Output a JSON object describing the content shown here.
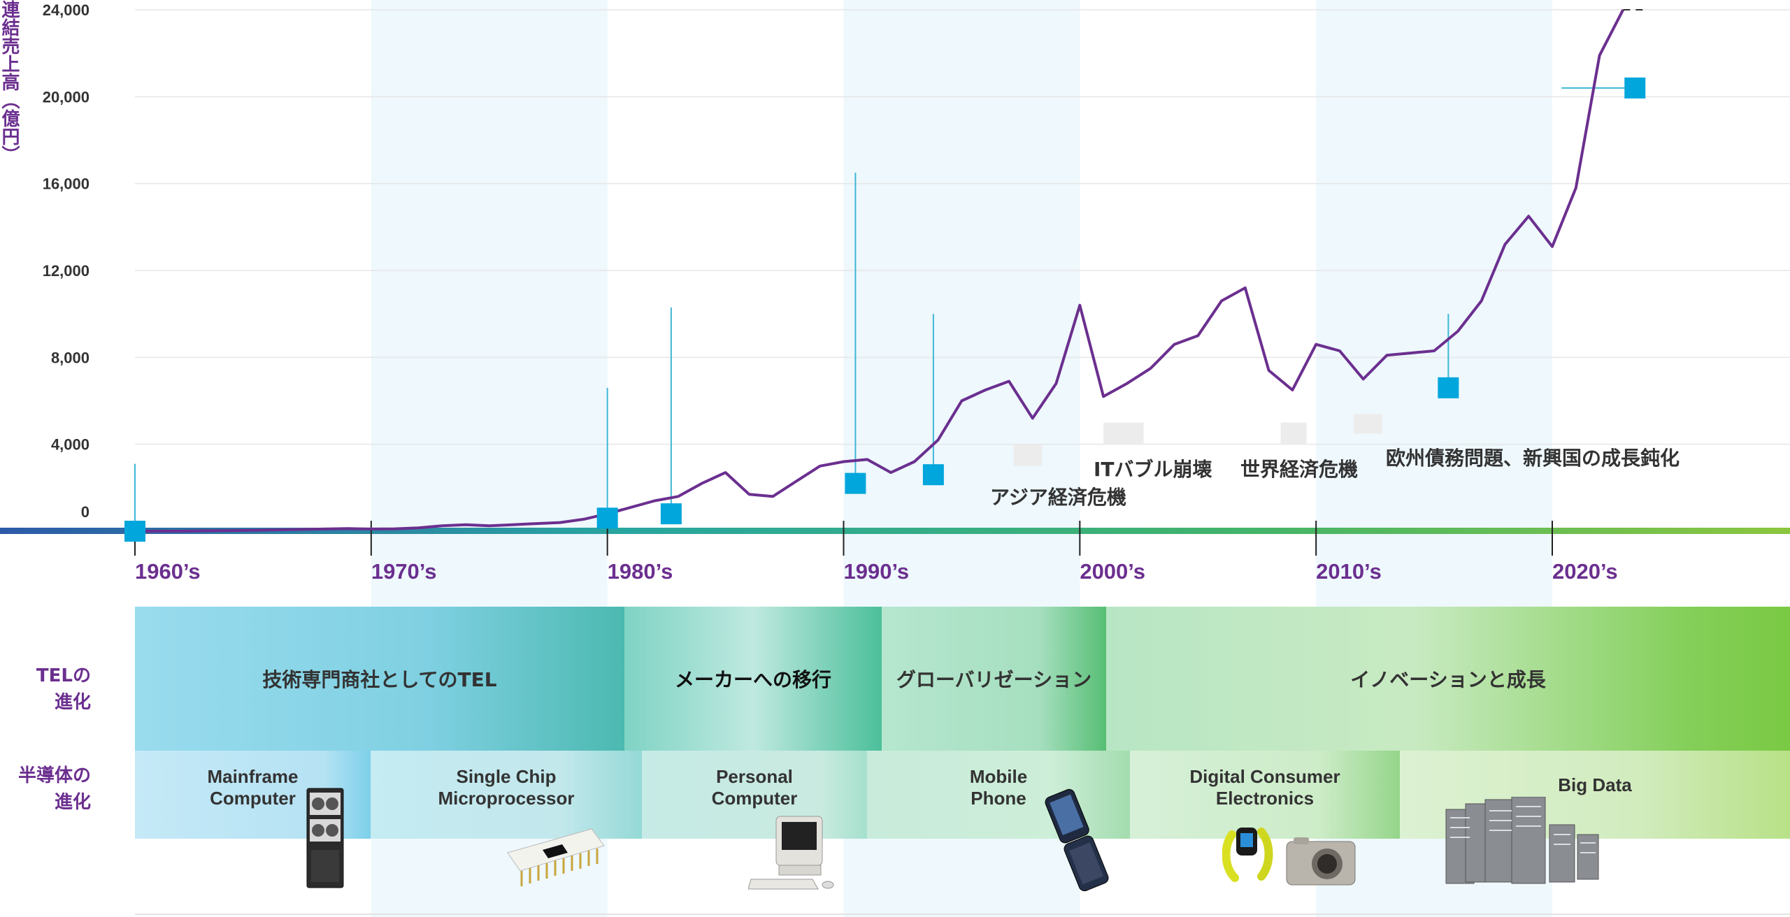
{
  "chart_data": {
    "type": "line",
    "ylabel": "連結売上高（億円）",
    "ylim": [
      0,
      24000
    ],
    "yticks": [
      "24,000",
      "20,000",
      "16,000",
      "12,000",
      "8,000",
      "4,000",
      "0"
    ],
    "decades": [
      "1960’s",
      "1970’s",
      "1980’s",
      "1990’s",
      "2000’s",
      "2010’s",
      "2020’s"
    ],
    "series": [
      {
        "x": [
          1960,
          1961,
          1962,
          1963,
          1964,
          1965,
          1966,
          1967,
          1968,
          1969,
          1970,
          1971,
          1972,
          1973,
          1974,
          1975,
          1976,
          1977,
          1978,
          1979,
          1980,
          1981,
          1982,
          1983,
          1984,
          1985,
          1986,
          1987,
          1988,
          1989,
          1990,
          1991,
          1992,
          1993,
          1994,
          1995,
          1996,
          1997,
          1998,
          1999,
          2000,
          2001,
          2002,
          2003,
          2004,
          2005,
          2006,
          2007,
          2008,
          2009,
          2010,
          2011,
          2012,
          2013,
          2014,
          2015,
          2016,
          2017,
          2018,
          2019,
          2020,
          2021,
          2022,
          2023
        ],
        "values": [
          0,
          0,
          0,
          20,
          30,
          40,
          60,
          80,
          100,
          120,
          100,
          110,
          150,
          250,
          300,
          250,
          300,
          350,
          400,
          550,
          800,
          1100,
          1400,
          1600,
          2200,
          2700,
          1700,
          1600,
          2300,
          3000,
          3200,
          3300,
          2700,
          3200,
          4200,
          6000,
          6500,
          6900,
          5200,
          6800,
          10400,
          6200,
          6800,
          7500,
          8600,
          9000,
          10600,
          11200,
          7400,
          6500,
          8600,
          8300,
          7000,
          8100,
          8200,
          8300,
          9200,
          10600,
          13200,
          14500,
          13100,
          15800,
          21900,
          24000
        ]
      }
    ],
    "projection_end": [
      2024,
      24000
    ],
    "milestones": [
      {
        "x": 1960,
        "y": 0,
        "stem_top": 3100
      },
      {
        "x": 1980,
        "y": 600,
        "stem_top": 6600
      },
      {
        "x": 1982.7,
        "y": 800,
        "stem_top": 10300
      },
      {
        "x": 1990.5,
        "y": 2200,
        "stem_top": 16500
      },
      {
        "x": 1993.8,
        "y": 2600,
        "stem_top": 10000
      },
      {
        "x": 2015.6,
        "y": 6600,
        "stem_top": 10000
      },
      {
        "x": 2023.5,
        "y": 20400,
        "stem_top": 20400
      }
    ],
    "events": [
      {
        "label": "アジア経済危機"
      },
      {
        "label": "ITバブル崩壊"
      },
      {
        "label": "世界経済危機"
      },
      {
        "label": "欧州債務問題、新興国の成長鈍化"
      }
    ]
  },
  "tel_evolution": {
    "label": "TELの\n進化",
    "stages": [
      "技術専門商社としてのTEL",
      "メーカーへの移行",
      "グローバリゼーション",
      "イノベーションと成長"
    ]
  },
  "semi_evolution": {
    "label": "半導体の\n進化",
    "eras": [
      "Mainframe\nComputer",
      "Single Chip\nMicroprocessor",
      "Personal\nComputer",
      "Mobile\nPhone",
      "Digital Consumer\nElectronics",
      "Big Data"
    ]
  },
  "colors": {
    "purple": "#6b2f8f",
    "marker": "#00a6dc",
    "stem": "#3fb7d6",
    "band": "#eef8fd"
  },
  "icons": [
    "mainframe-icon",
    "microprocessor-chip-icon",
    "personal-computer-icon",
    "flip-phone-icon",
    "fitness-band-icon",
    "digital-camera-icon",
    "server-rack-icon"
  ]
}
